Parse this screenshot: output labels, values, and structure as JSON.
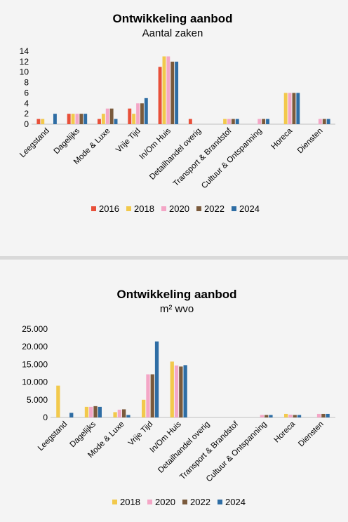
{
  "chart_data": [
    {
      "type": "bar",
      "title": "Ontwikkeling aanbod",
      "subtitle": "Aantal zaken",
      "xlabel": "",
      "ylabel": "",
      "ylim": [
        0,
        14
      ],
      "yticks": [
        "0",
        "2",
        "4",
        "6",
        "8",
        "10",
        "12",
        "14"
      ],
      "grid": false,
      "legend_position": "bottom",
      "categories": [
        "Leegstand",
        "Dagelijks",
        "Mode & Luxe",
        "Vrije Tijd",
        "In/Om Huis",
        "Detailhandel overig",
        "Transport & Brandstof",
        "Cultuur & Ontspanning",
        "Horeca",
        "Diensten"
      ],
      "series": [
        {
          "name": "2016",
          "color": "#e8503a",
          "values": [
            1,
            2,
            1,
            3,
            11,
            1,
            0,
            0,
            0,
            0
          ]
        },
        {
          "name": "2018",
          "color": "#f2c94c",
          "values": [
            1,
            2,
            2,
            2,
            13,
            0,
            1,
            0,
            6,
            0
          ]
        },
        {
          "name": "2020",
          "color": "#f4a6c6",
          "values": [
            0,
            2,
            3,
            4,
            13,
            0,
            1,
            1,
            6,
            1
          ]
        },
        {
          "name": "2022",
          "color": "#7a5a3c",
          "values": [
            0,
            2,
            3,
            4,
            12,
            0,
            1,
            1,
            6,
            1
          ]
        },
        {
          "name": "2024",
          "color": "#2e6da4",
          "values": [
            2,
            2,
            1,
            5,
            12,
            0,
            1,
            1,
            6,
            1
          ]
        }
      ]
    },
    {
      "type": "bar",
      "title": "Ontwikkeling aanbod",
      "subtitle": "m² wvo",
      "xlabel": "",
      "ylabel": "",
      "ylim": [
        0,
        25000
      ],
      "yticks": [
        "0",
        "5.000",
        "10.000",
        "15.000",
        "20.000",
        "25.000"
      ],
      "grid": false,
      "legend_position": "bottom",
      "categories": [
        "Leegstand",
        "Dagelijks",
        "Mode & Luxe",
        "Vrije Tijd",
        "In/Om Huis",
        "Detailhandel overig",
        "Transport & Brandstof",
        "Cultuur & Ontspanning",
        "Horeca",
        "Diensten"
      ],
      "series": [
        {
          "name": "2018",
          "color": "#f2c94c",
          "values": [
            9000,
            3000,
            1500,
            5000,
            15800,
            0,
            0,
            0,
            1000,
            0
          ]
        },
        {
          "name": "2020",
          "color": "#f4a6c6",
          "values": [
            0,
            3000,
            2200,
            12200,
            14700,
            0,
            0,
            700,
            800,
            1000
          ]
        },
        {
          "name": "2022",
          "color": "#7a5a3c",
          "values": [
            0,
            3200,
            2300,
            12200,
            14400,
            0,
            0,
            700,
            700,
            1000
          ]
        },
        {
          "name": "2024",
          "color": "#2e6da4",
          "values": [
            1300,
            3000,
            700,
            21500,
            14800,
            0,
            0,
            700,
            700,
            1000
          ]
        }
      ]
    }
  ]
}
